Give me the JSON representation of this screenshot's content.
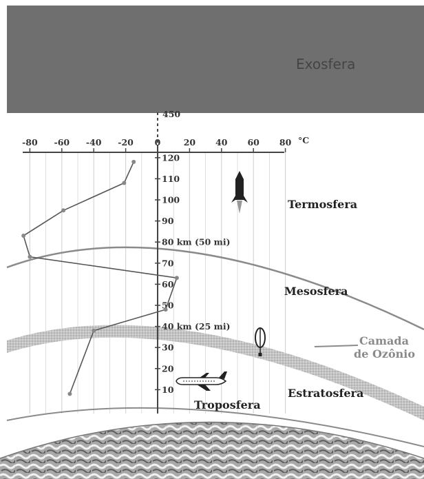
{
  "layers": {
    "exosphere": "Exosfera",
    "thermosphere": "Termosfera",
    "mesosphere": "Mesosfera",
    "stratosphere": "Estratosfera",
    "troposphere": "Troposfera"
  },
  "ozone_label": [
    "Camada",
    "de Ozônio"
  ],
  "temperature_axis": {
    "unit": "°C",
    "ticks": [
      "-80",
      "-60",
      "-40",
      "-20",
      "0",
      "20",
      "40",
      "60",
      "80"
    ]
  },
  "altitude_axis": {
    "top_label": "450",
    "ticks": [
      "120",
      "110",
      "100",
      "90",
      "80 km (50 mi)",
      "70",
      "60",
      "50",
      "40 km (25 mi)",
      "30",
      "20",
      "10"
    ]
  },
  "colors": {
    "exosphere": "#6f6f6f",
    "curve": "#555555",
    "ozone": "#b8b8b8",
    "grid": "#d6d6d6"
  },
  "icons": [
    "rocket-icon",
    "balloon-icon",
    "airplane-icon",
    "earth-image"
  ],
  "chart_data": {
    "type": "line",
    "x_axis": "temperature (°C)",
    "y_axis": "altitude (km)",
    "xlim": [
      -80,
      80
    ],
    "ylim": [
      0,
      120
    ],
    "series": [
      {
        "x": [
          -55,
          -40,
          5,
          12,
          -80,
          -84,
          -59,
          -21,
          -15
        ],
        "y": [
          8,
          38,
          48,
          63,
          73,
          83,
          95,
          108,
          118
        ]
      }
    ]
  }
}
